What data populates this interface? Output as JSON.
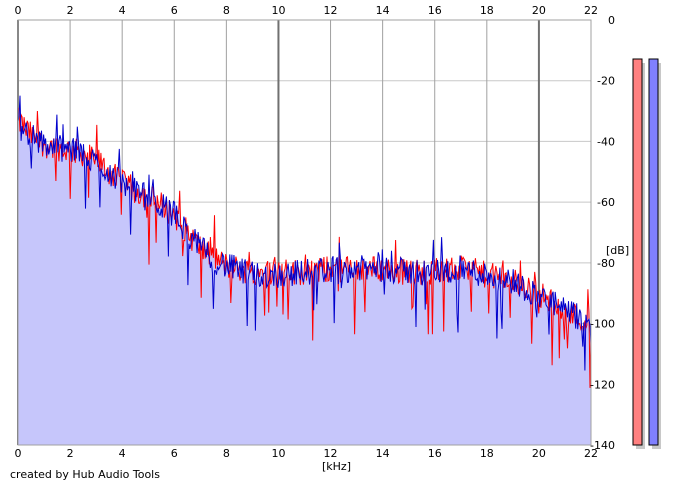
{
  "chart_data": {
    "type": "area",
    "xlabel": "[kHz]",
    "ylabel": "[dB]",
    "xlim": [
      0,
      22
    ],
    "ylim": [
      -140,
      0
    ],
    "x_ticks": [
      0,
      2,
      4,
      6,
      8,
      10,
      12,
      14,
      16,
      18,
      20,
      22
    ],
    "y_ticks": [
      0,
      -20,
      -40,
      -60,
      -80,
      -100,
      -120,
      -140
    ],
    "x_tick_labels": [
      "0",
      "2",
      "4",
      "6",
      "8",
      "10",
      "12",
      "14",
      "16",
      "18",
      "20",
      "22"
    ],
    "y_tick_labels": [
      "0",
      "-20",
      "-40",
      "-60",
      "-80",
      "-100",
      "-120",
      "-140"
    ],
    "grid": true,
    "x_ticks_top": true,
    "series": [
      {
        "channel": "left",
        "color": "#ff0000",
        "envelope_x": [
          0,
          0.5,
          1,
          1.5,
          2,
          2.5,
          3,
          3.5,
          4,
          4.5,
          5,
          5.5,
          6,
          6.5,
          7,
          7.5,
          8,
          9,
          10,
          11,
          12,
          13,
          14,
          15,
          16,
          17,
          18,
          19,
          20,
          20.5,
          21,
          21.5,
          22
        ],
        "envelope_y": [
          -33,
          -38,
          -41,
          -42,
          -43,
          -44,
          -46,
          -50,
          -54,
          -56,
          -58,
          -61,
          -64,
          -70,
          -75,
          -78,
          -81,
          -83,
          -83,
          -83,
          -82,
          -82,
          -82,
          -83,
          -83,
          -82,
          -84,
          -86,
          -90,
          -93,
          -96,
          -98,
          -101
        ]
      },
      {
        "channel": "right",
        "color": "#0000cc",
        "envelope_x": [
          0,
          0.5,
          1,
          1.5,
          2,
          2.5,
          3,
          3.5,
          4,
          4.5,
          5,
          5.5,
          6,
          6.5,
          7,
          7.5,
          8,
          9,
          10,
          11,
          12,
          13,
          14,
          15,
          16,
          17,
          18,
          19,
          20,
          20.5,
          21,
          21.5,
          22
        ],
        "envelope_y": [
          -35,
          -38,
          -41,
          -42,
          -43,
          -44,
          -47,
          -50,
          -54,
          -56,
          -59,
          -61,
          -64,
          -70,
          -75,
          -79,
          -81,
          -84,
          -84,
          -83,
          -82,
          -82,
          -82,
          -83,
          -83,
          -82,
          -84,
          -86,
          -91,
          -93,
          -96,
          -98,
          -102
        ]
      }
    ],
    "fill_color": "#c6c6fb",
    "level_meters": [
      {
        "channel": "left",
        "color": "#ff8080",
        "level_db": 0
      },
      {
        "channel": "right",
        "color": "#8080ff",
        "level_db": 0
      }
    ]
  },
  "credit": "created by Hub Audio Tools"
}
